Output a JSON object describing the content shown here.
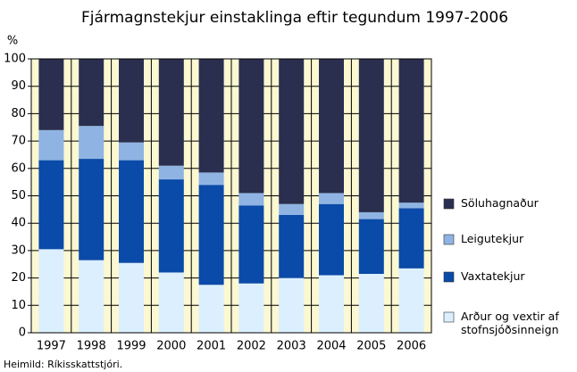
{
  "chart_data": {
    "type": "stacked_bar",
    "title": "Fjármagnstekjur einstaklinga eftir tegundum 1997-2006",
    "y_label": "%",
    "source": "Heimild: Ríkisskattstjóri.",
    "categories": [
      "1997",
      "1998",
      "1999",
      "2000",
      "2001",
      "2002",
      "2003",
      "2004",
      "2005",
      "2006"
    ],
    "series": [
      {
        "name": "Arður og vextir af stofnsjóðsinneign",
        "color": "#dcefff",
        "values": [
          30.5,
          26.5,
          25.5,
          22,
          17.5,
          18,
          20,
          21,
          21.5,
          23.5
        ]
      },
      {
        "name": "Vaxtatekjur",
        "color": "#0a4aa8",
        "values": [
          32.5,
          37,
          37.5,
          34,
          36.5,
          28.5,
          23,
          26,
          20,
          22
        ]
      },
      {
        "name": "Leigutekjur",
        "color": "#8fb4e3",
        "values": [
          11,
          12,
          6.5,
          5,
          4.5,
          4.5,
          4,
          4,
          2.5,
          2
        ]
      },
      {
        "name": "Söluhagnaður",
        "color": "#2a2f4f",
        "values": [
          26,
          24.5,
          30.5,
          39,
          41.5,
          49,
          53,
          49,
          56,
          52.5
        ]
      }
    ],
    "ylim": [
      0,
      100
    ],
    "yticks": [
      0,
      10,
      20,
      30,
      40,
      50,
      60,
      70,
      80,
      90,
      100
    ],
    "grid": true,
    "legend": "right",
    "background": "#fbf8d2"
  }
}
